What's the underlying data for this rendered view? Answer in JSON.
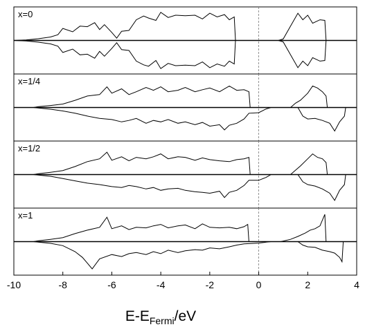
{
  "chart_data": {
    "type": "line",
    "xlabel": {
      "main": "E-E",
      "subscript": "Fermi",
      "suffix": "/eV"
    },
    "xlim": [
      -10,
      4
    ],
    "xticks": [
      -10,
      -8,
      -6,
      -4,
      -2,
      0,
      2,
      4
    ],
    "fermi_level_line": 0,
    "grid": false,
    "panels": [
      {
        "label": "x=0",
        "series": [
          {
            "x": [
              -10,
              -9.5,
              -9.0,
              -8.5,
              -8.2,
              -8.0,
              -7.6,
              -7.3,
              -7.0,
              -6.7,
              -6.5,
              -6.3,
              -6.0,
              -5.8,
              -5.6,
              -5.3,
              -5.0,
              -4.7,
              -4.5,
              -4.2,
              -4.0,
              -3.7,
              -3.4,
              -3.0,
              -2.6,
              -2.3,
              -2.0,
              -1.7,
              -1.4,
              -1.2,
              -1.0,
              -0.95,
              0.8,
              1.0,
              1.3,
              1.6,
              1.8,
              2.0,
              2.2,
              2.5,
              2.7,
              2.75
            ],
            "y": [
              0,
              0.02,
              0.06,
              0.12,
              0.2,
              0.42,
              0.3,
              0.5,
              0.48,
              0.62,
              0.38,
              0.55,
              0.28,
              0.08,
              0.32,
              0.35,
              0.72,
              0.85,
              0.78,
              0.7,
              0.98,
              0.8,
              0.88,
              0.86,
              0.88,
              0.75,
              0.95,
              0.82,
              0.9,
              0.72,
              0.82,
              0,
              0,
              0.05,
              0.5,
              0.95,
              0.72,
              0.88,
              0.6,
              0.72,
              0.7,
              0
            ]
          },
          {
            "x": [
              -10,
              -9.5,
              -9.0,
              -8.5,
              -8.2,
              -8.0,
              -7.6,
              -7.3,
              -7.0,
              -6.7,
              -6.5,
              -6.3,
              -6.0,
              -5.8,
              -5.6,
              -5.3,
              -5.0,
              -4.7,
              -4.5,
              -4.2,
              -4.0,
              -3.7,
              -3.4,
              -3.0,
              -2.6,
              -2.3,
              -2.0,
              -1.7,
              -1.4,
              -1.2,
              -1.0,
              -0.95,
              0.8,
              1.0,
              1.3,
              1.6,
              1.8,
              2.0,
              2.2,
              2.5,
              2.7,
              2.75
            ],
            "y": [
              0,
              -0.02,
              -0.06,
              -0.12,
              -0.2,
              -0.42,
              -0.3,
              -0.5,
              -0.48,
              -0.62,
              -0.38,
              -0.55,
              -0.28,
              -0.08,
              -0.32,
              -0.35,
              -0.72,
              -0.85,
              -0.9,
              -0.7,
              -0.98,
              -0.8,
              -0.88,
              -0.86,
              -0.88,
              -0.75,
              -0.95,
              -0.82,
              -0.9,
              -0.72,
              -0.82,
              0,
              0,
              -0.05,
              -0.5,
              -0.95,
              -0.72,
              -0.88,
              -0.6,
              -0.72,
              -0.7,
              0
            ]
          }
        ]
      },
      {
        "label": "x=1/4",
        "series": [
          {
            "x": [
              -9.2,
              -9.0,
              -8.5,
              -8.0,
              -7.5,
              -7.0,
              -6.5,
              -6.2,
              -6.0,
              -5.6,
              -5.3,
              -5.0,
              -4.6,
              -4.3,
              -4.0,
              -3.7,
              -3.3,
              -3.0,
              -2.6,
              -2.3,
              -2.0,
              -1.6,
              -1.2,
              -0.9,
              -0.6,
              -0.4,
              -0.35,
              1.3,
              1.5,
              1.7,
              2.0,
              2.2,
              2.4,
              2.6,
              2.75,
              2.8
            ],
            "y": [
              0,
              0.03,
              0.07,
              0.12,
              0.25,
              0.4,
              0.45,
              0.72,
              0.5,
              0.65,
              0.45,
              0.55,
              0.7,
              0.6,
              0.72,
              0.55,
              0.6,
              0.7,
              0.55,
              0.62,
              0.68,
              0.55,
              0.75,
              0.6,
              0.62,
              0.55,
              0,
              0,
              0.15,
              0.25,
              0.5,
              0.75,
              0.68,
              0.55,
              0.4,
              0
            ]
          },
          {
            "x": [
              -9.2,
              -9.0,
              -8.5,
              -8.0,
              -7.5,
              -7.0,
              -6.5,
              -6.0,
              -5.6,
              -5.3,
              -5.0,
              -4.6,
              -4.3,
              -4.0,
              -3.7,
              -3.3,
              -3.0,
              -2.6,
              -2.3,
              -2.0,
              -1.6,
              -1.4,
              -1.2,
              -0.9,
              -0.6,
              -0.4,
              0,
              0.3,
              0.5,
              1.6,
              1.8,
              2.0,
              2.3,
              2.6,
              2.9,
              3.1,
              3.3,
              3.5,
              3.55
            ],
            "y": [
              0,
              -0.02,
              -0.06,
              -0.12,
              -0.2,
              -0.3,
              -0.38,
              -0.42,
              -0.5,
              -0.45,
              -0.38,
              -0.55,
              -0.45,
              -0.5,
              -0.42,
              -0.55,
              -0.5,
              -0.6,
              -0.52,
              -0.65,
              -0.6,
              -0.78,
              -0.62,
              -0.55,
              -0.4,
              -0.2,
              -0.18,
              -0.05,
              0,
              0,
              -0.3,
              -0.4,
              -0.38,
              -0.45,
              -0.55,
              -0.82,
              -0.5,
              -0.3,
              0
            ]
          }
        ]
      },
      {
        "label": "x=1/2",
        "series": [
          {
            "x": [
              -9.2,
              -9.0,
              -8.5,
              -8.0,
              -7.5,
              -7.0,
              -6.5,
              -6.2,
              -6.0,
              -5.6,
              -5.3,
              -5.0,
              -4.6,
              -4.3,
              -4.0,
              -3.7,
              -3.3,
              -3.0,
              -2.6,
              -2.3,
              -2.0,
              -1.6,
              -1.2,
              -0.9,
              -0.6,
              -0.4,
              -0.35,
              1.3,
              1.5,
              1.7,
              2.0,
              2.2,
              2.4,
              2.6,
              2.75,
              2.8
            ],
            "y": [
              0,
              0.03,
              0.08,
              0.14,
              0.28,
              0.45,
              0.55,
              0.78,
              0.5,
              0.62,
              0.48,
              0.6,
              0.55,
              0.62,
              0.72,
              0.55,
              0.62,
              0.6,
              0.5,
              0.58,
              0.52,
              0.48,
              0.45,
              0.52,
              0.55,
              0.6,
              0,
              0,
              0.15,
              0.3,
              0.55,
              0.72,
              0.6,
              0.55,
              0.42,
              0
            ]
          },
          {
            "x": [
              -9.2,
              -9.0,
              -8.5,
              -8.0,
              -7.5,
              -7.0,
              -6.5,
              -6.0,
              -5.6,
              -5.3,
              -5.0,
              -4.6,
              -4.3,
              -4.0,
              -3.7,
              -3.3,
              -3.0,
              -2.6,
              -2.3,
              -2.0,
              -1.6,
              -1.4,
              -1.2,
              -0.9,
              -0.6,
              -0.4,
              0,
              0.3,
              0.5,
              1.6,
              1.8,
              2.0,
              2.3,
              2.6,
              2.9,
              3.1,
              3.3,
              3.5,
              3.55
            ],
            "y": [
              0,
              -0.02,
              -0.06,
              -0.14,
              -0.22,
              -0.3,
              -0.35,
              -0.42,
              -0.45,
              -0.38,
              -0.42,
              -0.5,
              -0.45,
              -0.55,
              -0.5,
              -0.48,
              -0.55,
              -0.6,
              -0.62,
              -0.65,
              -0.58,
              -0.8,
              -0.62,
              -0.55,
              -0.38,
              -0.2,
              -0.2,
              -0.1,
              0,
              0,
              -0.25,
              -0.35,
              -0.4,
              -0.5,
              -0.65,
              -0.9,
              -0.55,
              -0.35,
              0
            ]
          }
        ]
      },
      {
        "label": "x=1",
        "series": [
          {
            "x": [
              -9.2,
              -9.0,
              -8.5,
              -8.0,
              -7.5,
              -7.0,
              -6.5,
              -6.2,
              -6.0,
              -5.6,
              -5.3,
              -5.0,
              -4.6,
              -4.3,
              -4.0,
              -3.7,
              -3.3,
              -3.0,
              -2.6,
              -2.3,
              -2.0,
              -1.6,
              -1.2,
              -0.9,
              -0.6,
              -0.45,
              -0.4,
              0.9,
              1.3,
              1.6,
              1.9,
              2.1,
              2.3,
              2.5,
              2.7,
              2.75
            ],
            "y": [
              0,
              0.03,
              0.08,
              0.14,
              0.28,
              0.4,
              0.5,
              0.85,
              0.45,
              0.55,
              0.42,
              0.5,
              0.48,
              0.55,
              0.6,
              0.48,
              0.55,
              0.58,
              0.45,
              0.62,
              0.5,
              0.48,
              0.5,
              0.45,
              0.52,
              0.6,
              0,
              0,
              0.08,
              0.18,
              0.3,
              0.4,
              0.45,
              0.55,
              0.95,
              0
            ]
          },
          {
            "x": [
              -9.2,
              -9.0,
              -8.5,
              -8.0,
              -7.5,
              -7.2,
              -7.0,
              -6.8,
              -6.5,
              -6.0,
              -5.6,
              -5.3,
              -5.0,
              -4.6,
              -4.3,
              -4.0,
              -3.7,
              -3.3,
              -3.0,
              -2.6,
              -2.3,
              -2.0,
              -1.6,
              -1.2,
              -0.9,
              -0.6,
              0,
              0.3,
              0.5,
              1.6,
              1.8,
              2.0,
              2.3,
              2.6,
              2.9,
              3.1,
              3.3,
              3.4,
              3.45
            ],
            "y": [
              0,
              -0.02,
              -0.06,
              -0.14,
              -0.35,
              -0.55,
              -0.75,
              -0.95,
              -0.6,
              -0.45,
              -0.52,
              -0.42,
              -0.38,
              -0.45,
              -0.35,
              -0.42,
              -0.3,
              -0.38,
              -0.32,
              -0.28,
              -0.3,
              -0.22,
              -0.25,
              -0.18,
              -0.12,
              -0.08,
              -0.05,
              -0.02,
              0,
              0,
              -0.12,
              -0.18,
              -0.2,
              -0.3,
              -0.35,
              -0.4,
              -0.55,
              -0.7,
              0
            ]
          }
        ]
      }
    ]
  }
}
